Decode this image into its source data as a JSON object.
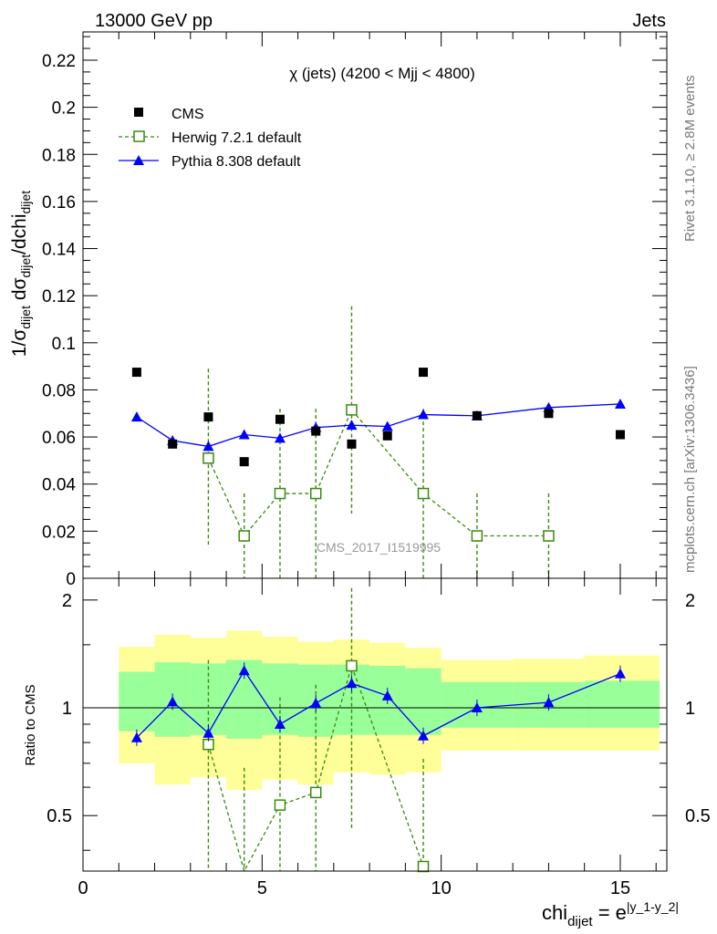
{
  "header": {
    "left": "13000 GeV pp",
    "right": "Jets"
  },
  "side_labels": {
    "rivet": "Rivet 3.1.10, ≥ 2.8M events",
    "mcplots": "mcplots.cern.ch [arXiv:1306.3436]"
  },
  "watermark": "CMS_2017_I1519995",
  "colors": {
    "cms": "#000000",
    "herwig": "#3a8a0c",
    "pythia": "#0000ff",
    "band_outer": "#ffff99",
    "band_inner": "#99ff99"
  },
  "chart_data": [
    {
      "type": "scatter",
      "title": "χ (jets) (4200 < Mjj < 4800)",
      "ylabel": {
        "main": "1/σ",
        "sub1": "dijet",
        "mid": " dσ",
        "sub2": "dijet",
        "tail": "/dchi",
        "sub3": "dijet"
      },
      "ylim": [
        0,
        0.232
      ],
      "xlim": [
        0,
        16.3
      ],
      "yticks": [
        0,
        0.02,
        0.04,
        0.06,
        0.08,
        0.1,
        0.12,
        0.14,
        0.16,
        0.18,
        0.2,
        0.22
      ],
      "ytick_labels": [
        "0",
        "0.02",
        "0.04",
        "0.06",
        "0.08",
        "0.1",
        "0.12",
        "0.14",
        "0.16",
        "0.18",
        "0.2",
        "0.22"
      ],
      "series": [
        {
          "name": "CMS",
          "x": [
            1.5,
            2.5,
            3.5,
            4.5,
            5.5,
            6.5,
            7.5,
            8.5,
            9.5,
            11,
            13,
            15
          ],
          "y": [
            0.0875,
            0.057,
            0.0685,
            0.0495,
            0.0675,
            0.0625,
            0.057,
            0.0605,
            0.0875,
            0.069,
            0.07,
            0.061
          ]
        },
        {
          "name": "Herwig 7.2.1 default",
          "x": [
            3.5,
            4.5,
            5.5,
            6.5,
            7.5,
            9.5,
            11,
            13
          ],
          "y": [
            0.051,
            0.018,
            0.036,
            0.036,
            0.0715,
            0.036,
            0.018,
            0.018
          ],
          "yerr": [
            0.038,
            0.018,
            0.036,
            0.036,
            0.044,
            0.036,
            0.018,
            0.018
          ]
        },
        {
          "name": "Pythia 8.308 default",
          "x": [
            1.5,
            2.5,
            3.5,
            4.5,
            5.5,
            6.5,
            7.5,
            8.5,
            9.5,
            11,
            13,
            15
          ],
          "y": [
            0.0685,
            0.0585,
            0.056,
            0.061,
            0.0595,
            0.064,
            0.065,
            0.0645,
            0.0695,
            0.069,
            0.0725,
            0.074
          ]
        }
      ]
    },
    {
      "type": "line",
      "ylabel": "Ratio to CMS",
      "xlabel": {
        "main": "chi",
        "sub": "dijet",
        "mid": " = e",
        "sup": "|y_1-y_2|"
      },
      "ylim": [
        0.35,
        2.3
      ],
      "xlim": [
        0,
        16.3
      ],
      "yticks": [
        0.5,
        1,
        2
      ],
      "ytick_labels": [
        "0.5",
        "1",
        "2"
      ],
      "xticks": [
        0,
        5,
        10,
        15
      ],
      "xtick_labels": [
        "0",
        "5",
        "10",
        "15"
      ],
      "bands": [
        {
          "lo": 1,
          "hi": 2,
          "inner": [
            0.86,
            1.26
          ],
          "outer": [
            0.7,
            1.48
          ]
        },
        {
          "lo": 2,
          "hi": 3,
          "inner": [
            0.83,
            1.34
          ],
          "outer": [
            0.61,
            1.6
          ]
        },
        {
          "lo": 3,
          "hi": 4,
          "inner": [
            0.84,
            1.33
          ],
          "outer": [
            0.64,
            1.57
          ]
        },
        {
          "lo": 4,
          "hi": 5,
          "inner": [
            0.82,
            1.36
          ],
          "outer": [
            0.59,
            1.64
          ]
        },
        {
          "lo": 5,
          "hi": 6,
          "inner": [
            0.84,
            1.33
          ],
          "outer": [
            0.63,
            1.58
          ]
        },
        {
          "lo": 6,
          "hi": 7,
          "inner": [
            0.83,
            1.32
          ],
          "outer": [
            0.61,
            1.53
          ]
        },
        {
          "lo": 7,
          "hi": 8,
          "inner": [
            0.84,
            1.32
          ],
          "outer": [
            0.66,
            1.55
          ]
        },
        {
          "lo": 8,
          "hi": 9,
          "inner": [
            0.84,
            1.31
          ],
          "outer": [
            0.65,
            1.52
          ]
        },
        {
          "lo": 9,
          "hi": 10,
          "inner": [
            0.84,
            1.29
          ],
          "outer": [
            0.66,
            1.47
          ]
        },
        {
          "lo": 10,
          "hi": 12,
          "inner": [
            0.88,
            1.18
          ],
          "outer": [
            0.76,
            1.36
          ]
        },
        {
          "lo": 12,
          "hi": 14,
          "inner": [
            0.88,
            1.18
          ],
          "outer": [
            0.76,
            1.37
          ]
        },
        {
          "lo": 14,
          "hi": 16.1,
          "inner": [
            0.88,
            1.19
          ],
          "outer": [
            0.76,
            1.4
          ]
        }
      ],
      "series": [
        {
          "name": "Herwig 7.2.1 default",
          "x": [
            3.5,
            4.5,
            5.5,
            6.5,
            7.5,
            9.5
          ],
          "y": [
            0.79,
            0.34,
            0.535,
            0.58,
            1.31,
            0.36
          ],
          "yerr": [
            0.57,
            0.34,
            0.535,
            0.58,
            0.85,
            0.36
          ]
        },
        {
          "name": "Pythia 8.308 default",
          "x": [
            1.5,
            2.5,
            3.5,
            4.5,
            5.5,
            6.5,
            7.5,
            8.5,
            9.5,
            11,
            13,
            15
          ],
          "y": [
            0.825,
            1.04,
            0.85,
            1.27,
            0.9,
            1.03,
            1.17,
            1.08,
            0.835,
            1.0,
            1.035,
            1.245
          ]
        }
      ]
    }
  ]
}
